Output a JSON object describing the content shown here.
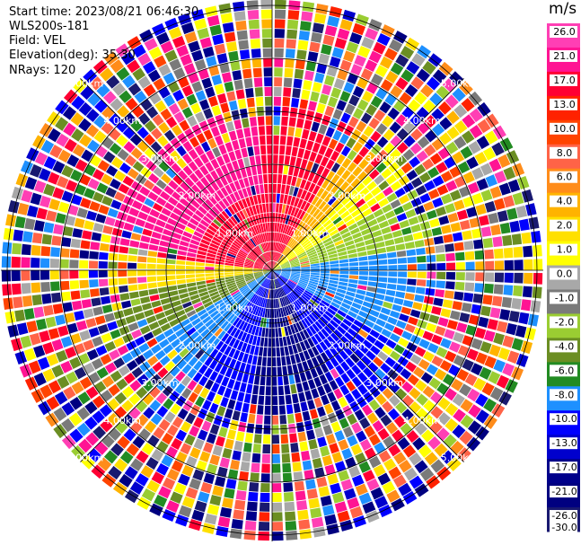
{
  "header": {
    "start_time": "Start time: 2023/08/21 06:46:30",
    "instrument": "WLS200s-181",
    "field": "Field: VEL",
    "elevation": "Elevation(deg): 35.30",
    "nrays": "NRays: 120"
  },
  "colorbar": {
    "unit": "m/s",
    "ticks": [
      "26.0",
      "21.0",
      "17.0",
      "13.0",
      "10.0",
      "8.0",
      "6.0",
      "4.0",
      "2.0",
      "1.0",
      "0.0",
      "-1.0",
      "-2.0",
      "-4.0",
      "-6.0",
      "-8.0",
      "-10.0",
      "-13.0",
      "-17.0",
      "-21.0",
      "-26.0",
      "-30.0"
    ],
    "colors": [
      "#ff3fb4",
      "#ff1493",
      "#ff0033",
      "#ff2200",
      "#ff4400",
      "#ff6347",
      "#ff8c1a",
      "#ffb300",
      "#ffe000",
      "#ffff00",
      "#a8a8a8",
      "#7a7a7a",
      "#9acd32",
      "#6b8e23",
      "#228b22",
      "#1e90ff",
      "#0000ff",
      "#0000cd",
      "#00008b",
      "#000080",
      "#191970"
    ]
  },
  "chart_data": {
    "type": "ppi",
    "field": "VEL",
    "nrays": 120,
    "range_rings_km": [
      1,
      2,
      3,
      4,
      5
    ],
    "ring_labels": [
      "1.00km",
      "2.00km",
      "3.00km",
      "4.00km",
      "5.00km"
    ],
    "value_range": [
      -30,
      26
    ],
    "unit": "m/s"
  }
}
